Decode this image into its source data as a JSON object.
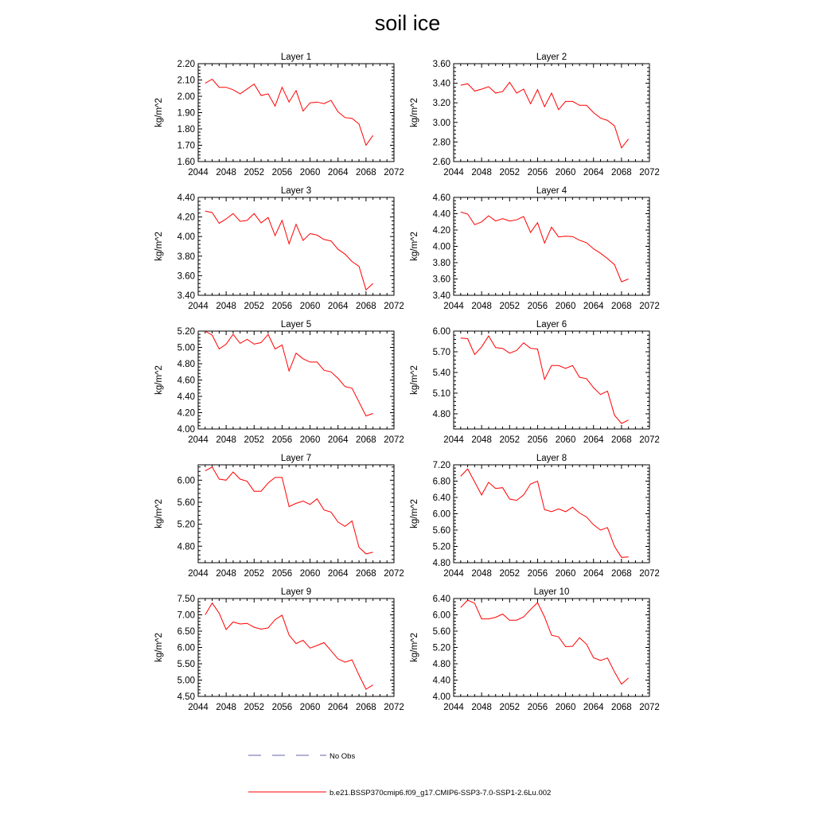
{
  "title": "soil ice",
  "chart_data": [
    {
      "type": "line",
      "title": "Layer 1",
      "ylabel": "kg/m^2",
      "xlim": [
        2044,
        2072
      ],
      "xticks": [
        2044,
        2048,
        2052,
        2056,
        2060,
        2064,
        2068,
        2072
      ],
      "ylim": [
        1.6,
        2.2
      ],
      "yticks": [
        "1.60",
        "1.70",
        "1.80",
        "1.90",
        "2.00",
        "2.10",
        "2.20"
      ],
      "series": [
        {
          "color": "#ff0000",
          "x": [
            2045,
            2046,
            2047,
            2048,
            2049,
            2050,
            2051,
            2052,
            2053,
            2054,
            2055,
            2056,
            2057,
            2058,
            2059,
            2060,
            2061,
            2062,
            2063,
            2064,
            2065,
            2066,
            2067,
            2068,
            2069
          ],
          "values": [
            2.08,
            2.105,
            2.055,
            2.055,
            2.04,
            2.015,
            2.045,
            2.075,
            2.005,
            2.015,
            1.94,
            2.055,
            1.965,
            2.035,
            1.91,
            1.96,
            1.965,
            1.955,
            1.975,
            1.905,
            1.87,
            1.865,
            1.83,
            1.7,
            1.76
          ]
        }
      ]
    },
    {
      "type": "line",
      "title": "Layer 2",
      "ylabel": "kg/m^2",
      "xlim": [
        2044,
        2072
      ],
      "xticks": [
        2044,
        2048,
        2052,
        2056,
        2060,
        2064,
        2068,
        2072
      ],
      "ylim": [
        2.6,
        3.6
      ],
      "yticks": [
        "2.60",
        "2.80",
        "3.00",
        "3.20",
        "3.40",
        "3.60"
      ],
      "series": [
        {
          "color": "#ff0000",
          "x": [
            2045,
            2046,
            2047,
            2048,
            2049,
            2050,
            2051,
            2052,
            2053,
            2054,
            2055,
            2056,
            2057,
            2058,
            2059,
            2060,
            2061,
            2062,
            2063,
            2064,
            2065,
            2066,
            2067,
            2068,
            2069
          ],
          "values": [
            3.38,
            3.395,
            3.32,
            3.34,
            3.365,
            3.3,
            3.315,
            3.41,
            3.3,
            3.34,
            3.19,
            3.335,
            3.16,
            3.3,
            3.13,
            3.215,
            3.215,
            3.175,
            3.175,
            3.1,
            3.045,
            3.02,
            2.965,
            2.74,
            2.83
          ]
        }
      ]
    },
    {
      "type": "line",
      "title": "Layer 3",
      "ylabel": "kg/m^2",
      "xlim": [
        2044,
        2072
      ],
      "xticks": [
        2044,
        2048,
        2052,
        2056,
        2060,
        2064,
        2068,
        2072
      ],
      "ylim": [
        3.4,
        4.4
      ],
      "yticks": [
        "3.40",
        "3.60",
        "3.80",
        "4.00",
        "4.20",
        "4.40"
      ],
      "series": [
        {
          "color": "#ff0000",
          "x": [
            2045,
            2046,
            2047,
            2048,
            2049,
            2050,
            2051,
            2052,
            2053,
            2054,
            2055,
            2056,
            2057,
            2058,
            2059,
            2060,
            2061,
            2062,
            2063,
            2064,
            2065,
            2066,
            2067,
            2068,
            2069
          ],
          "values": [
            4.26,
            4.245,
            4.135,
            4.18,
            4.235,
            4.155,
            4.165,
            4.235,
            4.14,
            4.195,
            4.01,
            4.165,
            3.925,
            4.125,
            3.96,
            4.03,
            4.015,
            3.97,
            3.955,
            3.87,
            3.82,
            3.745,
            3.695,
            3.455,
            3.52
          ]
        }
      ]
    },
    {
      "type": "line",
      "title": "Layer 4",
      "ylabel": "kg/m^2",
      "xlim": [
        2044,
        2072
      ],
      "xticks": [
        2044,
        2048,
        2052,
        2056,
        2060,
        2064,
        2068,
        2072
      ],
      "ylim": [
        3.4,
        4.6
      ],
      "yticks": [
        "3.40",
        "3.60",
        "3.80",
        "4.00",
        "4.20",
        "4.40",
        "4.60"
      ],
      "series": [
        {
          "color": "#ff0000",
          "x": [
            2045,
            2046,
            2047,
            2048,
            2049,
            2050,
            2051,
            2052,
            2053,
            2054,
            2055,
            2056,
            2057,
            2058,
            2059,
            2060,
            2061,
            2062,
            2063,
            2064,
            2065,
            2066,
            2067,
            2068,
            2069
          ],
          "values": [
            4.42,
            4.395,
            4.265,
            4.3,
            4.375,
            4.31,
            4.34,
            4.31,
            4.325,
            4.365,
            4.17,
            4.29,
            4.04,
            4.235,
            4.115,
            4.125,
            4.12,
            4.075,
            4.045,
            3.97,
            3.915,
            3.85,
            3.775,
            3.565,
            3.6
          ]
        }
      ]
    },
    {
      "type": "line",
      "title": "Layer 5",
      "ylabel": "kg/m^2",
      "xlim": [
        2044,
        2072
      ],
      "xticks": [
        2044,
        2048,
        2052,
        2056,
        2060,
        2064,
        2068,
        2072
      ],
      "ylim": [
        4.0,
        5.2
      ],
      "yticks": [
        "4.00",
        "4.20",
        "4.40",
        "4.60",
        "4.80",
        "5.00",
        "5.20"
      ],
      "series": [
        {
          "color": "#ff0000",
          "x": [
            2045,
            2046,
            2047,
            2048,
            2049,
            2050,
            2051,
            2052,
            2053,
            2054,
            2055,
            2056,
            2057,
            2058,
            2059,
            2060,
            2061,
            2062,
            2063,
            2064,
            2065,
            2066,
            2067,
            2068,
            2069
          ],
          "values": [
            5.2,
            5.15,
            4.98,
            5.04,
            5.16,
            5.05,
            5.1,
            5.04,
            5.06,
            5.16,
            4.98,
            5.03,
            4.71,
            4.93,
            4.86,
            4.82,
            4.82,
            4.72,
            4.7,
            4.62,
            4.52,
            4.5,
            4.33,
            4.16,
            4.19
          ]
        }
      ]
    },
    {
      "type": "line",
      "title": "Layer 6",
      "ylabel": "kg/m^2",
      "xlim": [
        2044,
        2072
      ],
      "xticks": [
        2044,
        2048,
        2052,
        2056,
        2060,
        2064,
        2068,
        2072
      ],
      "ylim": [
        4.58,
        6.0
      ],
      "yticks": [
        "4.80",
        "5.10",
        "5.40",
        "5.70",
        "6.00"
      ],
      "series": [
        {
          "color": "#ff0000",
          "x": [
            2045,
            2046,
            2047,
            2048,
            2049,
            2050,
            2051,
            2052,
            2053,
            2054,
            2055,
            2056,
            2057,
            2058,
            2059,
            2060,
            2061,
            2062,
            2063,
            2064,
            2065,
            2066,
            2067,
            2068,
            2069
          ],
          "values": [
            5.9,
            5.89,
            5.66,
            5.77,
            5.93,
            5.76,
            5.75,
            5.68,
            5.72,
            5.83,
            5.75,
            5.74,
            5.3,
            5.5,
            5.5,
            5.46,
            5.5,
            5.33,
            5.31,
            5.18,
            5.08,
            5.13,
            4.78,
            4.66,
            4.71
          ]
        }
      ]
    },
    {
      "type": "line",
      "title": "Layer 7",
      "ylabel": "kg/m^2",
      "xlim": [
        2044,
        2072
      ],
      "xticks": [
        2044,
        2048,
        2052,
        2056,
        2060,
        2064,
        2068,
        2072
      ],
      "ylim": [
        4.5,
        6.28
      ],
      "yticks": [
        "4.80",
        "5.20",
        "5.60",
        "6.00"
      ],
      "series": [
        {
          "color": "#ff0000",
          "x": [
            2045,
            2046,
            2047,
            2048,
            2049,
            2050,
            2051,
            2052,
            2053,
            2054,
            2055,
            2056,
            2057,
            2058,
            2059,
            2060,
            2061,
            2062,
            2063,
            2064,
            2065,
            2066,
            2067,
            2068,
            2069
          ],
          "values": [
            6.17,
            6.24,
            6.02,
            6.0,
            6.15,
            6.02,
            5.98,
            5.8,
            5.8,
            5.95,
            6.05,
            6.05,
            5.52,
            5.58,
            5.62,
            5.56,
            5.66,
            5.46,
            5.42,
            5.24,
            5.16,
            5.26,
            4.78,
            4.66,
            4.69
          ]
        }
      ]
    },
    {
      "type": "line",
      "title": "Layer 8",
      "ylabel": "kg/m^2",
      "xlim": [
        2044,
        2072
      ],
      "xticks": [
        2044,
        2048,
        2052,
        2056,
        2060,
        2064,
        2068,
        2072
      ],
      "ylim": [
        4.8,
        7.2
      ],
      "yticks": [
        "4.80",
        "5.20",
        "5.60",
        "6.00",
        "6.40",
        "6.80",
        "7.20"
      ],
      "series": [
        {
          "color": "#ff0000",
          "x": [
            2045,
            2046,
            2047,
            2048,
            2049,
            2050,
            2051,
            2052,
            2053,
            2054,
            2055,
            2056,
            2057,
            2058,
            2059,
            2060,
            2061,
            2062,
            2063,
            2064,
            2065,
            2066,
            2067,
            2068,
            2069
          ],
          "values": [
            6.92,
            7.1,
            6.78,
            6.46,
            6.77,
            6.62,
            6.64,
            6.36,
            6.33,
            6.46,
            6.73,
            6.8,
            6.1,
            6.05,
            6.12,
            6.05,
            6.16,
            6.02,
            5.92,
            5.73,
            5.6,
            5.66,
            5.2,
            4.93,
            4.94
          ]
        }
      ]
    },
    {
      "type": "line",
      "title": "Layer 9",
      "ylabel": "kg/m^2",
      "xlim": [
        2044,
        2072
      ],
      "xticks": [
        2044,
        2048,
        2052,
        2056,
        2060,
        2064,
        2068,
        2072
      ],
      "ylim": [
        4.5,
        7.5
      ],
      "yticks": [
        "4.50",
        "5.00",
        "5.50",
        "6.00",
        "6.50",
        "7.00",
        "7.50"
      ],
      "series": [
        {
          "color": "#ff0000",
          "x": [
            2045,
            2046,
            2047,
            2048,
            2049,
            2050,
            2051,
            2052,
            2053,
            2054,
            2055,
            2056,
            2057,
            2058,
            2059,
            2060,
            2061,
            2062,
            2063,
            2064,
            2065,
            2066,
            2067,
            2068,
            2069
          ],
          "values": [
            7.0,
            7.36,
            7.05,
            6.55,
            6.78,
            6.72,
            6.74,
            6.62,
            6.56,
            6.6,
            6.85,
            6.99,
            6.38,
            6.12,
            6.22,
            5.98,
            6.06,
            6.15,
            5.9,
            5.65,
            5.55,
            5.62,
            5.15,
            4.72,
            4.85
          ]
        }
      ]
    },
    {
      "type": "line",
      "title": "Layer 10",
      "ylabel": "kg/m^2",
      "xlim": [
        2044,
        2072
      ],
      "xticks": [
        2044,
        2048,
        2052,
        2056,
        2060,
        2064,
        2068,
        2072
      ],
      "ylim": [
        4.0,
        6.4
      ],
      "yticks": [
        "4.00",
        "4.40",
        "4.80",
        "5.20",
        "5.60",
        "6.00",
        "6.40"
      ],
      "series": [
        {
          "color": "#ff0000",
          "x": [
            2045,
            2046,
            2047,
            2048,
            2049,
            2050,
            2051,
            2052,
            2053,
            2054,
            2055,
            2056,
            2057,
            2058,
            2059,
            2060,
            2061,
            2062,
            2063,
            2064,
            2065,
            2066,
            2067,
            2068,
            2069
          ],
          "values": [
            6.18,
            6.36,
            6.28,
            5.9,
            5.9,
            5.94,
            6.02,
            5.87,
            5.87,
            5.95,
            6.13,
            6.3,
            5.95,
            5.5,
            5.46,
            5.22,
            5.23,
            5.44,
            5.28,
            4.95,
            4.88,
            4.94,
            4.6,
            4.3,
            4.45
          ]
        }
      ]
    }
  ],
  "legend": {
    "items": [
      {
        "label": "No Obs",
        "color": "#6666aa",
        "style": "dashed"
      },
      {
        "label": "b.e21.BSSP370cmip6.f09_g17.CMIP6-SSP3-7.0-SSP1-2.6Lu.002",
        "color": "#ff0000",
        "style": "solid"
      }
    ]
  }
}
